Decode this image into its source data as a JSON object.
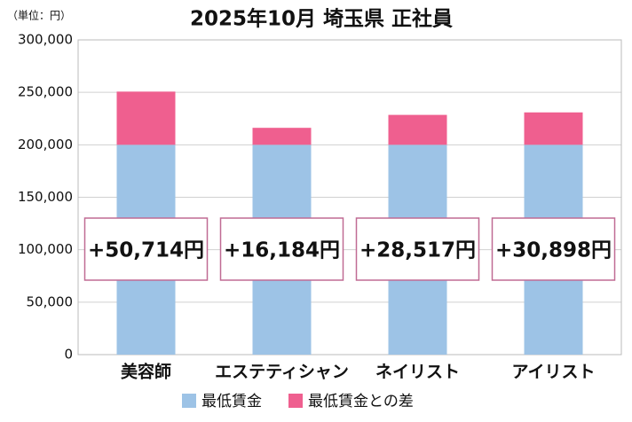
{
  "chart_data": {
    "type": "bar",
    "stacked": true,
    "title": "2025年10月 埼玉県 正社員",
    "unit_label": "（単位：円）",
    "categories": [
      "美容師",
      "エステティシャン",
      "ネイリスト",
      "アイリスト"
    ],
    "series": [
      {
        "name": "最低賃金",
        "color": "#9dc3e6",
        "values": [
          200000,
          200000,
          200000,
          200000
        ]
      },
      {
        "name": "最低賃金との差",
        "color": "#ef5f8f",
        "values": [
          50714,
          16184,
          28517,
          30898
        ],
        "value_labels": [
          "+50,714円",
          "+16,184円",
          "+28,517円",
          "+30,898円"
        ]
      }
    ],
    "ylim": [
      0,
      300000
    ],
    "yticks": [
      0,
      {
        "value": 50000,
        "label": "50,000"
      },
      {
        "value": 100000,
        "label": "100,000"
      },
      {
        "value": 150000,
        "label": "150,000"
      },
      {
        "value": 200000,
        "label": "200,000"
      },
      {
        "value": 250000,
        "label": "250,000"
      },
      {
        "value": 300000,
        "label": "300,000"
      }
    ],
    "grid": true
  }
}
